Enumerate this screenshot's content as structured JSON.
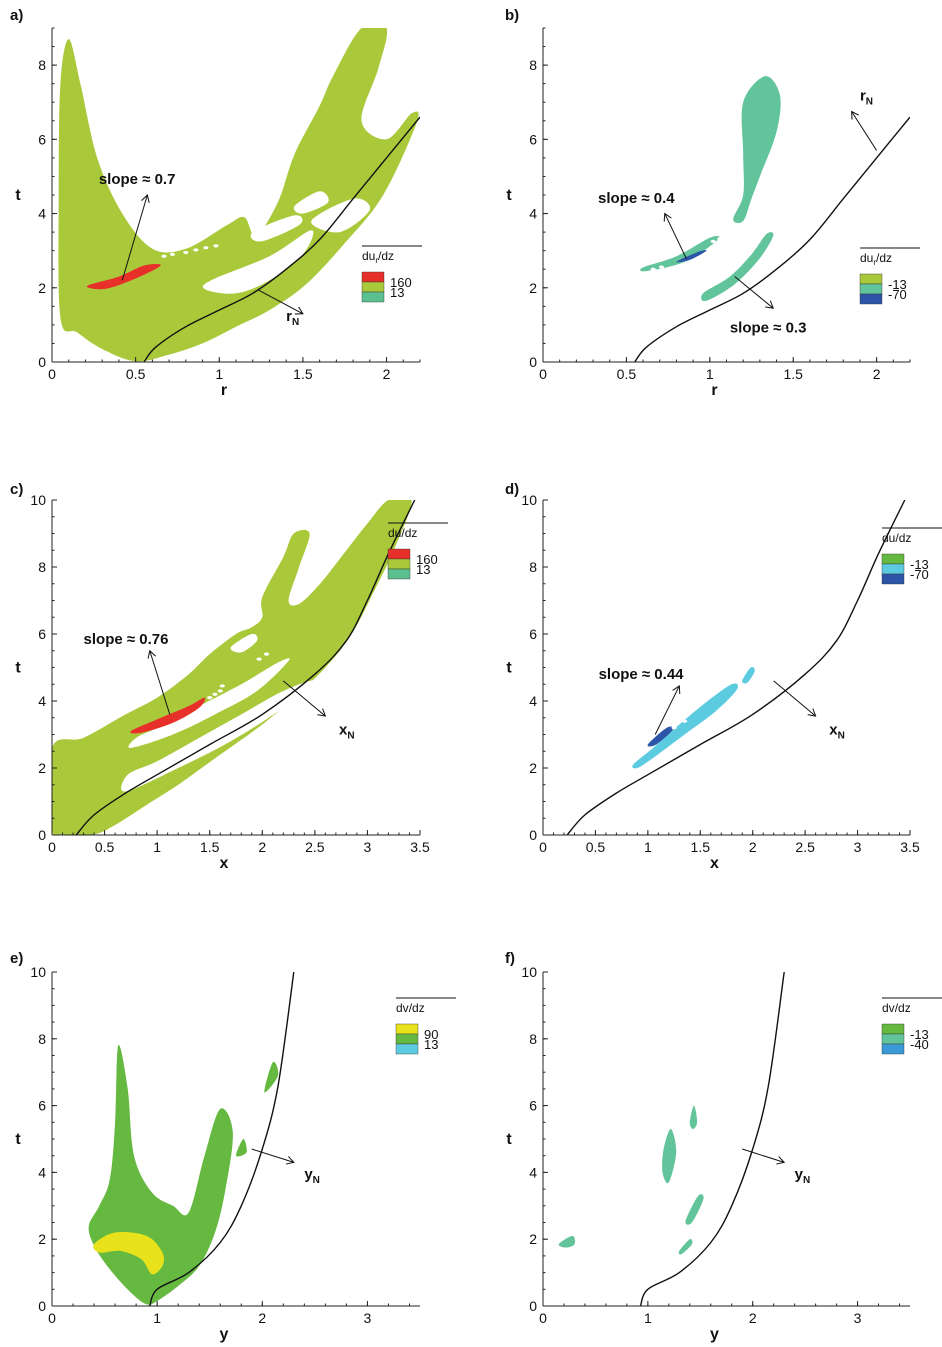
{
  "colors": {
    "red": "#e8302a",
    "yellow_green": "#a9c93a",
    "teal": "#5cbf8f",
    "mint": "#62c49a",
    "blue": "#2c55a8",
    "cyan": "#5ccbe0",
    "green": "#66b940",
    "yellow": "#e8e21c",
    "light_blue": "#3a9ad8",
    "curve": "#111111"
  },
  "chart_data": [
    {
      "id": "a",
      "type": "contour",
      "panel_label": "a)",
      "xlabel": "r",
      "ylabel": "t",
      "xlim": [
        0,
        2.2
      ],
      "ylim": [
        0,
        9
      ],
      "xticks": [
        "0",
        "0.5",
        "1",
        "1.5",
        "2"
      ],
      "xtick_values": [
        0,
        0.5,
        1,
        1.5,
        2
      ],
      "yticks": [
        "0",
        "2",
        "4",
        "6",
        "8"
      ],
      "ytick_values": [
        0,
        2,
        4,
        6,
        8
      ],
      "front_label": "r",
      "front_sub": "N",
      "front_curve": [
        [
          0.55,
          0
        ],
        [
          0.62,
          0.4
        ],
        [
          0.8,
          0.95
        ],
        [
          1.0,
          1.4
        ],
        [
          1.2,
          1.85
        ],
        [
          1.4,
          2.5
        ],
        [
          1.6,
          3.3
        ],
        [
          1.8,
          4.4
        ],
        [
          2.0,
          5.5
        ],
        [
          2.2,
          6.6
        ]
      ],
      "front_arrow": {
        "from": [
          1.23,
          1.95
        ],
        "to": [
          1.5,
          1.3
        ],
        "label_at": [
          1.4,
          1.1
        ]
      },
      "legend": {
        "title": "du_r/dz",
        "title_main": "du",
        "title_sub": "r",
        "title_rest": "/dz",
        "levels": [
          "160",
          "13"
        ],
        "colors": [
          "red",
          "yellow_green",
          "teal"
        ]
      },
      "annotations": [
        {
          "text": "slope ≈ 0.7",
          "text_at": [
            0.28,
            4.8
          ],
          "arrow_from": [
            0.42,
            2.2
          ],
          "arrow_to": [
            0.57,
            4.5
          ]
        }
      ]
    },
    {
      "id": "b",
      "type": "contour",
      "panel_label": "b)",
      "xlabel": "r",
      "ylabel": "t",
      "xlim": [
        0,
        2.2
      ],
      "ylim": [
        0,
        9
      ],
      "xticks": [
        "0",
        "0.5",
        "1",
        "1.5",
        "2"
      ],
      "xtick_values": [
        0,
        0.5,
        1,
        1.5,
        2
      ],
      "yticks": [
        "0",
        "2",
        "4",
        "6",
        "8"
      ],
      "ytick_values": [
        0,
        2,
        4,
        6,
        8
      ],
      "front_label": "r",
      "front_sub": "N",
      "front_curve": [
        [
          0.55,
          0
        ],
        [
          0.62,
          0.4
        ],
        [
          0.8,
          0.95
        ],
        [
          1.0,
          1.4
        ],
        [
          1.2,
          1.85
        ],
        [
          1.4,
          2.5
        ],
        [
          1.6,
          3.3
        ],
        [
          1.8,
          4.4
        ],
        [
          2.0,
          5.5
        ],
        [
          2.2,
          6.6
        ]
      ],
      "front_arrow": {
        "from": [
          2.0,
          5.7
        ],
        "to": [
          1.85,
          6.75
        ],
        "label_at": [
          1.9,
          7.05
        ]
      },
      "legend": {
        "title": "du_r/dz",
        "title_main": "du",
        "title_sub": "r",
        "title_rest": "/dz",
        "levels": [
          "-13",
          "-70"
        ],
        "colors": [
          "yellow_green",
          "mint",
          "blue"
        ]
      },
      "annotations": [
        {
          "text": "slope ≈ 0.4",
          "text_at": [
            0.33,
            4.28
          ],
          "arrow_from": [
            0.86,
            2.78
          ],
          "arrow_to": [
            0.73,
            4.0
          ]
        },
        {
          "text": "slope ≈ 0.3",
          "text_at": [
            1.12,
            0.8
          ],
          "arrow_from": [
            1.15,
            2.3
          ],
          "arrow_to": [
            1.38,
            1.45
          ]
        }
      ]
    },
    {
      "id": "c",
      "type": "contour",
      "panel_label": "c)",
      "xlabel": "x",
      "ylabel": "t",
      "xlim": [
        0,
        3.5
      ],
      "ylim": [
        0,
        10
      ],
      "xticks": [
        "0",
        "0.5",
        "1",
        "1.5",
        "2",
        "2.5",
        "3",
        "3.5"
      ],
      "xtick_values": [
        0,
        0.5,
        1,
        1.5,
        2,
        2.5,
        3,
        3.5
      ],
      "yticks": [
        "0",
        "2",
        "4",
        "6",
        "8",
        "10"
      ],
      "ytick_values": [
        0,
        2,
        4,
        6,
        8,
        10
      ],
      "front_label": "x",
      "front_sub": "N",
      "front_curve": [
        [
          0.23,
          0
        ],
        [
          0.4,
          0.6
        ],
        [
          0.7,
          1.25
        ],
        [
          1.0,
          1.8
        ],
        [
          1.5,
          2.7
        ],
        [
          2.0,
          3.6
        ],
        [
          2.5,
          4.8
        ],
        [
          2.8,
          5.8
        ],
        [
          3.0,
          7.0
        ],
        [
          3.2,
          8.4
        ],
        [
          3.45,
          10
        ]
      ],
      "front_arrow": {
        "from": [
          2.2,
          4.6
        ],
        "to": [
          2.6,
          3.55
        ],
        "label_at": [
          2.73,
          3.0
        ]
      },
      "legend": {
        "title": "du/dz",
        "title_main": "du",
        "title_sub": "",
        "title_rest": "/dz",
        "levels": [
          "160",
          "13"
        ],
        "colors": [
          "red",
          "yellow_green",
          "teal"
        ]
      },
      "annotations": [
        {
          "text": "slope ≈ 0.76",
          "text_at": [
            0.3,
            5.7
          ],
          "arrow_from": [
            1.12,
            3.6
          ],
          "arrow_to": [
            0.93,
            5.5
          ]
        }
      ]
    },
    {
      "id": "d",
      "type": "contour",
      "panel_label": "d)",
      "xlabel": "x",
      "ylabel": "t",
      "xlim": [
        0,
        3.5
      ],
      "ylim": [
        0,
        10
      ],
      "xticks": [
        "0",
        "0.5",
        "1",
        "1.5",
        "2",
        "2.5",
        "3",
        "3.5"
      ],
      "xtick_values": [
        0,
        0.5,
        1,
        1.5,
        2,
        2.5,
        3,
        3.5
      ],
      "yticks": [
        "0",
        "2",
        "4",
        "6",
        "8",
        "10"
      ],
      "ytick_values": [
        0,
        2,
        4,
        6,
        8,
        10
      ],
      "front_label": "x",
      "front_sub": "N",
      "front_curve": [
        [
          0.23,
          0
        ],
        [
          0.4,
          0.6
        ],
        [
          0.7,
          1.25
        ],
        [
          1.0,
          1.8
        ],
        [
          1.5,
          2.7
        ],
        [
          2.0,
          3.6
        ],
        [
          2.5,
          4.8
        ],
        [
          2.8,
          5.8
        ],
        [
          3.0,
          7.0
        ],
        [
          3.2,
          8.4
        ],
        [
          3.45,
          10
        ]
      ],
      "front_arrow": {
        "from": [
          2.2,
          4.6
        ],
        "to": [
          2.6,
          3.55
        ],
        "label_at": [
          2.73,
          3.0
        ]
      },
      "legend": {
        "title": "du/dz",
        "title_main": "du",
        "title_sub": "",
        "title_rest": "/dz",
        "levels": [
          "-13",
          "-70"
        ],
        "colors": [
          "green",
          "cyan",
          "blue"
        ]
      },
      "annotations": [
        {
          "text": "slope ≈ 0.44",
          "text_at": [
            0.53,
            4.65
          ],
          "arrow_from": [
            1.07,
            3.0
          ],
          "arrow_to": [
            1.3,
            4.45
          ]
        }
      ]
    },
    {
      "id": "e",
      "type": "contour",
      "panel_label": "e)",
      "xlabel": "y",
      "ylabel": "t",
      "xlim": [
        0,
        3.5
      ],
      "ylim": [
        0,
        10
      ],
      "xticks": [
        "0",
        "1",
        "2",
        "3"
      ],
      "xtick_values": [
        0,
        1,
        2,
        3
      ],
      "yticks": [
        "0",
        "2",
        "4",
        "6",
        "8",
        "10"
      ],
      "ytick_values": [
        0,
        2,
        4,
        6,
        8,
        10
      ],
      "front_label": "y",
      "front_sub": "N",
      "front_curve": [
        [
          0.93,
          0
        ],
        [
          1.0,
          0.5
        ],
        [
          1.3,
          1.0
        ],
        [
          1.6,
          1.9
        ],
        [
          1.8,
          3.0
        ],
        [
          2.0,
          4.7
        ],
        [
          2.15,
          6.6
        ],
        [
          2.3,
          10
        ]
      ],
      "front_arrow": {
        "from": [
          1.9,
          4.7
        ],
        "to": [
          2.3,
          4.3
        ],
        "label_at": [
          2.4,
          3.8
        ]
      },
      "legend": {
        "title": "dv/dz",
        "title_main": "dv",
        "title_sub": "",
        "title_rest": "/dz",
        "levels": [
          "90",
          "13"
        ],
        "colors": [
          "yellow",
          "green",
          "cyan"
        ]
      },
      "annotations": []
    },
    {
      "id": "f",
      "type": "contour",
      "panel_label": "f)",
      "xlabel": "y",
      "ylabel": "t",
      "xlim": [
        0,
        3.5
      ],
      "ylim": [
        0,
        10
      ],
      "xticks": [
        "0",
        "1",
        "2",
        "3"
      ],
      "xtick_values": [
        0,
        1,
        2,
        3
      ],
      "yticks": [
        "0",
        "2",
        "4",
        "6",
        "8",
        "10"
      ],
      "ytick_values": [
        0,
        2,
        4,
        6,
        8,
        10
      ],
      "front_label": "y",
      "front_sub": "N",
      "front_curve": [
        [
          0.93,
          0
        ],
        [
          1.0,
          0.5
        ],
        [
          1.3,
          1.0
        ],
        [
          1.6,
          1.9
        ],
        [
          1.8,
          3.0
        ],
        [
          2.0,
          4.7
        ],
        [
          2.15,
          6.6
        ],
        [
          2.3,
          10
        ]
      ],
      "front_arrow": {
        "from": [
          1.9,
          4.7
        ],
        "to": [
          2.3,
          4.3
        ],
        "label_at": [
          2.4,
          3.8
        ]
      },
      "legend": {
        "title": "dv/dz",
        "title_main": "dv",
        "title_sub": "",
        "title_rest": "/dz",
        "levels": [
          "-13",
          "-40"
        ],
        "colors": [
          "green",
          "mint",
          "light_blue"
        ]
      },
      "annotations": []
    }
  ]
}
